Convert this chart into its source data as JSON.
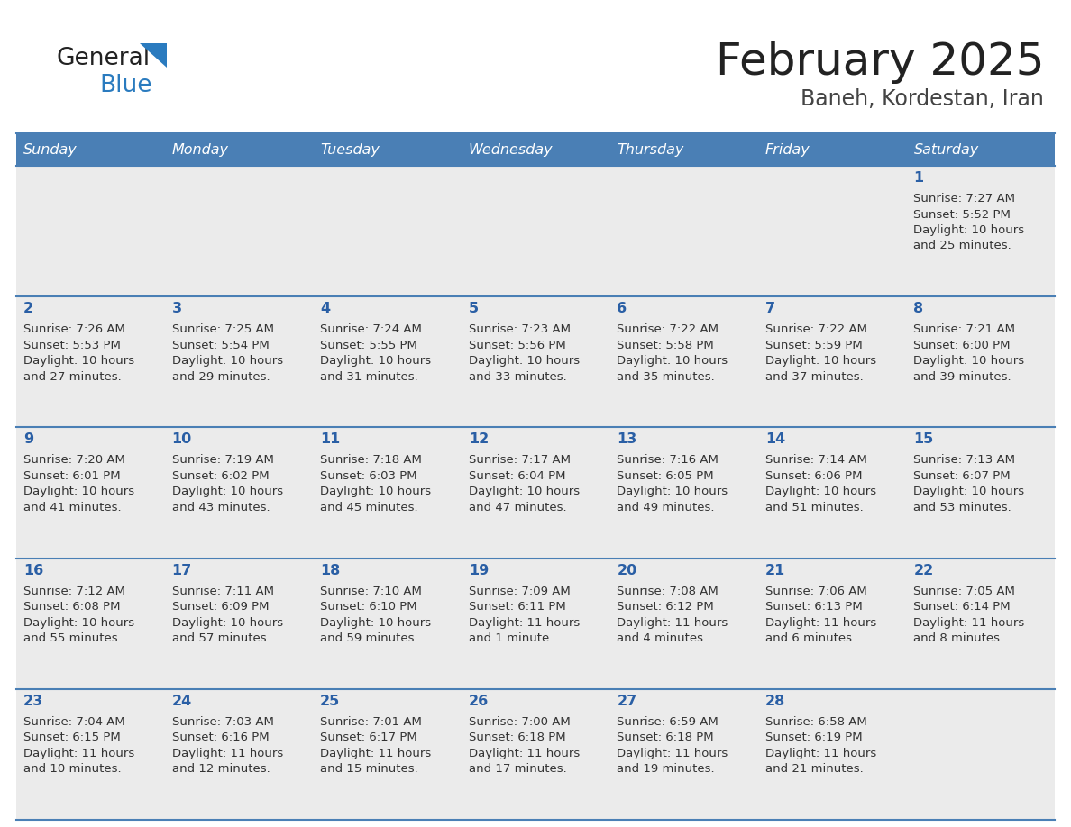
{
  "title": "February 2025",
  "subtitle": "Baneh, Kordestan, Iran",
  "header_bg": "#4a7fb5",
  "header_text_color": "#ffffff",
  "cell_bg_gray": "#ebebeb",
  "cell_bg_white": "#f5f5f5",
  "day_headers": [
    "Sunday",
    "Monday",
    "Tuesday",
    "Wednesday",
    "Thursday",
    "Friday",
    "Saturday"
  ],
  "border_color": "#4a7fb5",
  "title_color": "#222222",
  "subtitle_color": "#444444",
  "day_num_color": "#2a5fa5",
  "info_color": "#333333",
  "logo_general_color": "#222222",
  "logo_blue_color": "#2a7bbf",
  "calendar": [
    [
      null,
      null,
      null,
      null,
      null,
      null,
      {
        "day": 1,
        "sunrise": "7:27 AM",
        "sunset": "5:52 PM",
        "daylight_line1": "Daylight: 10 hours",
        "daylight_line2": "and 25 minutes."
      }
    ],
    [
      {
        "day": 2,
        "sunrise": "7:26 AM",
        "sunset": "5:53 PM",
        "daylight_line1": "Daylight: 10 hours",
        "daylight_line2": "and 27 minutes."
      },
      {
        "day": 3,
        "sunrise": "7:25 AM",
        "sunset": "5:54 PM",
        "daylight_line1": "Daylight: 10 hours",
        "daylight_line2": "and 29 minutes."
      },
      {
        "day": 4,
        "sunrise": "7:24 AM",
        "sunset": "5:55 PM",
        "daylight_line1": "Daylight: 10 hours",
        "daylight_line2": "and 31 minutes."
      },
      {
        "day": 5,
        "sunrise": "7:23 AM",
        "sunset": "5:56 PM",
        "daylight_line1": "Daylight: 10 hours",
        "daylight_line2": "and 33 minutes."
      },
      {
        "day": 6,
        "sunrise": "7:22 AM",
        "sunset": "5:58 PM",
        "daylight_line1": "Daylight: 10 hours",
        "daylight_line2": "and 35 minutes."
      },
      {
        "day": 7,
        "sunrise": "7:22 AM",
        "sunset": "5:59 PM",
        "daylight_line1": "Daylight: 10 hours",
        "daylight_line2": "and 37 minutes."
      },
      {
        "day": 8,
        "sunrise": "7:21 AM",
        "sunset": "6:00 PM",
        "daylight_line1": "Daylight: 10 hours",
        "daylight_line2": "and 39 minutes."
      }
    ],
    [
      {
        "day": 9,
        "sunrise": "7:20 AM",
        "sunset": "6:01 PM",
        "daylight_line1": "Daylight: 10 hours",
        "daylight_line2": "and 41 minutes."
      },
      {
        "day": 10,
        "sunrise": "7:19 AM",
        "sunset": "6:02 PM",
        "daylight_line1": "Daylight: 10 hours",
        "daylight_line2": "and 43 minutes."
      },
      {
        "day": 11,
        "sunrise": "7:18 AM",
        "sunset": "6:03 PM",
        "daylight_line1": "Daylight: 10 hours",
        "daylight_line2": "and 45 minutes."
      },
      {
        "day": 12,
        "sunrise": "7:17 AM",
        "sunset": "6:04 PM",
        "daylight_line1": "Daylight: 10 hours",
        "daylight_line2": "and 47 minutes."
      },
      {
        "day": 13,
        "sunrise": "7:16 AM",
        "sunset": "6:05 PM",
        "daylight_line1": "Daylight: 10 hours",
        "daylight_line2": "and 49 minutes."
      },
      {
        "day": 14,
        "sunrise": "7:14 AM",
        "sunset": "6:06 PM",
        "daylight_line1": "Daylight: 10 hours",
        "daylight_line2": "and 51 minutes."
      },
      {
        "day": 15,
        "sunrise": "7:13 AM",
        "sunset": "6:07 PM",
        "daylight_line1": "Daylight: 10 hours",
        "daylight_line2": "and 53 minutes."
      }
    ],
    [
      {
        "day": 16,
        "sunrise": "7:12 AM",
        "sunset": "6:08 PM",
        "daylight_line1": "Daylight: 10 hours",
        "daylight_line2": "and 55 minutes."
      },
      {
        "day": 17,
        "sunrise": "7:11 AM",
        "sunset": "6:09 PM",
        "daylight_line1": "Daylight: 10 hours",
        "daylight_line2": "and 57 minutes."
      },
      {
        "day": 18,
        "sunrise": "7:10 AM",
        "sunset": "6:10 PM",
        "daylight_line1": "Daylight: 10 hours",
        "daylight_line2": "and 59 minutes."
      },
      {
        "day": 19,
        "sunrise": "7:09 AM",
        "sunset": "6:11 PM",
        "daylight_line1": "Daylight: 11 hours",
        "daylight_line2": "and 1 minute."
      },
      {
        "day": 20,
        "sunrise": "7:08 AM",
        "sunset": "6:12 PM",
        "daylight_line1": "Daylight: 11 hours",
        "daylight_line2": "and 4 minutes."
      },
      {
        "day": 21,
        "sunrise": "7:06 AM",
        "sunset": "6:13 PM",
        "daylight_line1": "Daylight: 11 hours",
        "daylight_line2": "and 6 minutes."
      },
      {
        "day": 22,
        "sunrise": "7:05 AM",
        "sunset": "6:14 PM",
        "daylight_line1": "Daylight: 11 hours",
        "daylight_line2": "and 8 minutes."
      }
    ],
    [
      {
        "day": 23,
        "sunrise": "7:04 AM",
        "sunset": "6:15 PM",
        "daylight_line1": "Daylight: 11 hours",
        "daylight_line2": "and 10 minutes."
      },
      {
        "day": 24,
        "sunrise": "7:03 AM",
        "sunset": "6:16 PM",
        "daylight_line1": "Daylight: 11 hours",
        "daylight_line2": "and 12 minutes."
      },
      {
        "day": 25,
        "sunrise": "7:01 AM",
        "sunset": "6:17 PM",
        "daylight_line1": "Daylight: 11 hours",
        "daylight_line2": "and 15 minutes."
      },
      {
        "day": 26,
        "sunrise": "7:00 AM",
        "sunset": "6:18 PM",
        "daylight_line1": "Daylight: 11 hours",
        "daylight_line2": "and 17 minutes."
      },
      {
        "day": 27,
        "sunrise": "6:59 AM",
        "sunset": "6:18 PM",
        "daylight_line1": "Daylight: 11 hours",
        "daylight_line2": "and 19 minutes."
      },
      {
        "day": 28,
        "sunrise": "6:58 AM",
        "sunset": "6:19 PM",
        "daylight_line1": "Daylight: 11 hours",
        "daylight_line2": "and 21 minutes."
      },
      null
    ]
  ]
}
